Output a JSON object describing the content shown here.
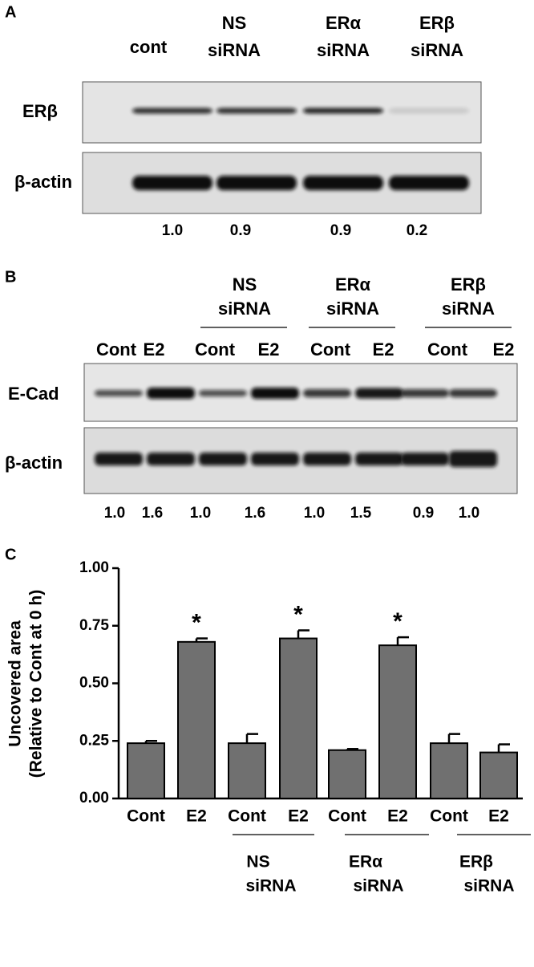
{
  "panel_a": {
    "label": "A",
    "lanes": [
      [
        "cont"
      ],
      [
        "NS",
        "siRNA"
      ],
      [
        "ERα",
        "siRNA"
      ],
      [
        "ERβ",
        "siRNA"
      ]
    ],
    "rows": [
      "ERβ",
      "β-actin"
    ],
    "ratios": [
      "1.0",
      "0.9",
      "0.9",
      "0.2"
    ]
  },
  "panel_b": {
    "label": "B",
    "groups": [
      {
        "lines": [
          "NS",
          "siRNA"
        ]
      },
      {
        "lines": [
          "ERα",
          "siRNA"
        ]
      },
      {
        "lines": [
          "ERβ",
          "siRNA"
        ]
      }
    ],
    "lanes": [
      "Cont",
      "E2",
      "Cont",
      "E2",
      "Cont",
      "E2",
      "Cont",
      "E2"
    ],
    "rows": [
      "E-Cad",
      "β-actin"
    ],
    "ratios": [
      "1.0",
      "1.6",
      "1.0",
      "1.6",
      "1.0",
      "1.5",
      "0.9",
      "1.0"
    ]
  },
  "chart_data": {
    "type": "bar",
    "panel_label": "C",
    "ylabel": [
      "Uncovered area",
      "(Relative to Cont at 0 h)"
    ],
    "categories": [
      "Cont",
      "E2",
      "Cont",
      "E2",
      "Cont",
      "E2",
      "Cont",
      "E2"
    ],
    "values": [
      0.24,
      0.68,
      0.24,
      0.695,
      0.21,
      0.665,
      0.24,
      0.2
    ],
    "errors": [
      0.01,
      0.015,
      0.04,
      0.035,
      0.005,
      0.035,
      0.04,
      0.035
    ],
    "significance": [
      null,
      "*",
      null,
      "*",
      null,
      "*",
      null,
      null
    ],
    "groups": [
      {
        "lines": [
          "NS",
          "siRNA"
        ],
        "categories": [
          2,
          3
        ]
      },
      {
        "lines": [
          "ERα",
          "siRNA"
        ],
        "categories": [
          4,
          5
        ]
      },
      {
        "lines": [
          "ERβ",
          "siRNA"
        ],
        "categories": [
          6,
          7
        ]
      }
    ],
    "color": "#707070",
    "ylim": [
      0,
      1
    ],
    "yticks": [
      {
        "value": 0,
        "label": "0.00"
      },
      {
        "value": 0.25,
        "label": "0.25"
      },
      {
        "value": 0.5,
        "label": "0.50"
      },
      {
        "value": 0.75,
        "label": "0.75"
      },
      {
        "value": 1,
        "label": "1.00"
      }
    ]
  }
}
